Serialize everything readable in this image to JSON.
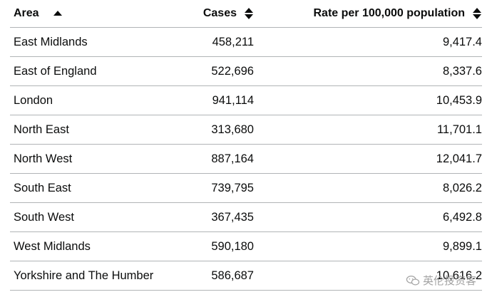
{
  "table": {
    "headers": {
      "area": "Area",
      "cases": "Cases",
      "rate": "Rate per 100,000 population"
    },
    "rows": [
      {
        "area": "East Midlands",
        "cases": "458,211",
        "rate": "9,417.4"
      },
      {
        "area": "East of England",
        "cases": "522,696",
        "rate": "8,337.6"
      },
      {
        "area": "London",
        "cases": "941,114",
        "rate": "10,453.9"
      },
      {
        "area": "North East",
        "cases": "313,680",
        "rate": "11,701.1"
      },
      {
        "area": "North West",
        "cases": "887,164",
        "rate": "12,041.7"
      },
      {
        "area": "South East",
        "cases": "739,795",
        "rate": "8,026.2"
      },
      {
        "area": "South West",
        "cases": "367,435",
        "rate": "6,492.8"
      },
      {
        "area": "West Midlands",
        "cases": "590,180",
        "rate": "9,899.1"
      },
      {
        "area": "Yorkshire and The Humber",
        "cases": "586,687",
        "rate": "10,616.2"
      }
    ]
  },
  "watermark": {
    "text": "英伦投资客",
    "icon": "wechat-logo-icon"
  },
  "colors": {
    "text": "#0b0c0c",
    "divider": "#b1b4b6",
    "watermark": "#9a9a9a"
  }
}
